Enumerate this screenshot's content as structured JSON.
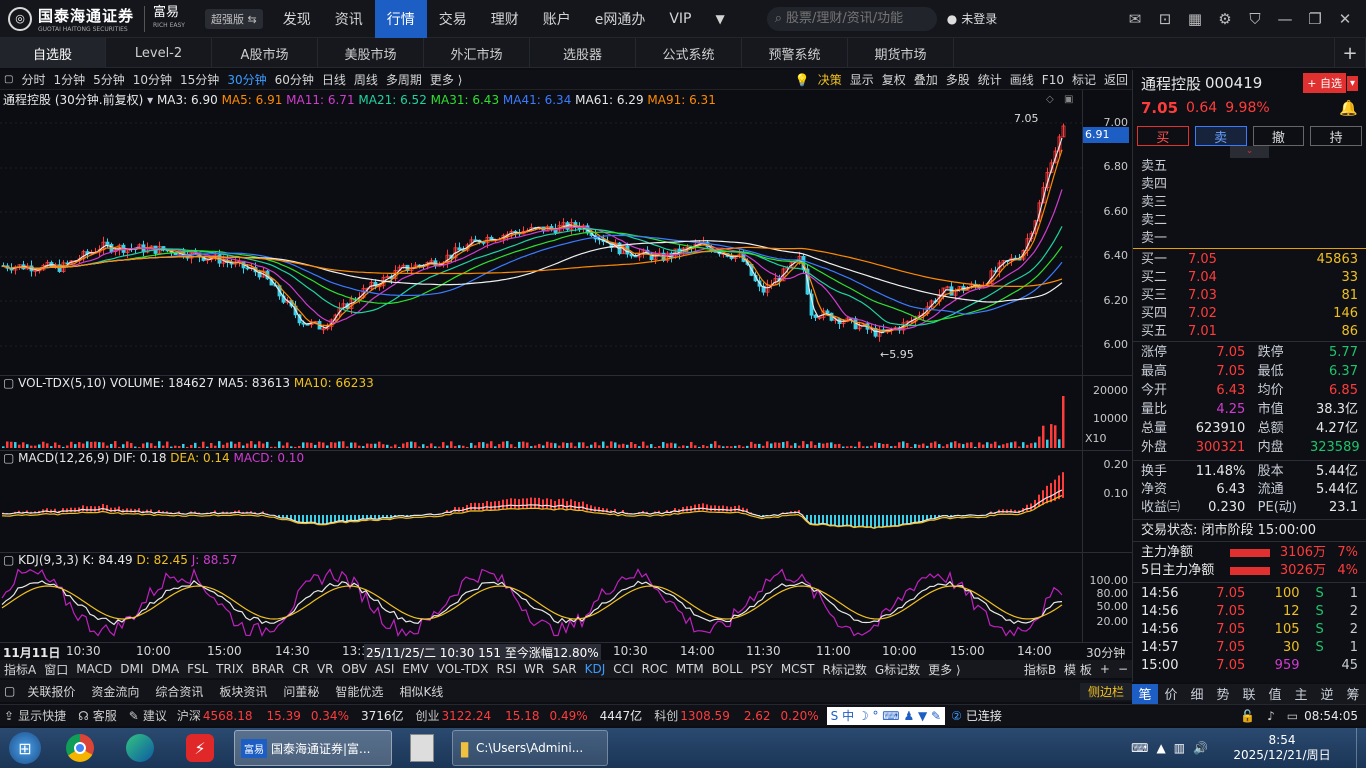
{
  "app": {
    "brand_cn": "国泰海通证券",
    "brand_en": "GUOTAI HAITONG SECURITIES",
    "rich": "富易",
    "rich_en": "RICH EASY",
    "edition": "超强版 ⇆"
  },
  "topnav": [
    "发现",
    "资讯",
    "行情",
    "交易",
    "理财",
    "账户",
    "e网通办",
    "VIP"
  ],
  "search_placeholder": "股票/理财/资讯/功能",
  "login": "未登录",
  "tabs2": [
    "自选股",
    "Level-2",
    "A股市场",
    "美股市场",
    "外汇市场",
    "选股器",
    "公式系统",
    "预警系统",
    "期货市场"
  ],
  "periods": [
    "分时",
    "1分钟",
    "5分钟",
    "10分钟",
    "15分钟",
    "30分钟",
    "60分钟",
    "日线",
    "周线",
    "多周期",
    "更多 ⟩"
  ],
  "tools": [
    "决策",
    "显示",
    "复权",
    "叠加",
    "多股",
    "统计",
    "画线",
    "F10",
    "标记",
    "返回"
  ],
  "ma_bar": {
    "name": "通程控股 (30分钟.前复权)",
    "ma3": "MA3: 6.90",
    "ma5": "MA5: 6.91",
    "ma11": "MA11: 6.71",
    "ma21": "MA21: 6.52",
    "ma31": "MA31: 6.43",
    "ma41": "MA41: 6.34",
    "ma61": "MA61: 6.29",
    "ma91": "MA91: 6.31"
  },
  "price_axis": [
    "7.00",
    "6.80",
    "6.60",
    "6.40",
    "6.20",
    "6.00"
  ],
  "price_high_label": "7.05",
  "price_low_label": "←5.95",
  "cur_price_tag": "6.91",
  "vol_bar": {
    "name": "VOL-TDX(5,10)",
    "vol": "VOLUME: 184627",
    "ma5": "MA5: 83613",
    "ma10": "MA10: 66233"
  },
  "vol_axis": [
    "20000",
    "10000"
  ],
  "vol_unit": "X10",
  "macd_bar": {
    "name": "MACD(12,26,9)",
    "dif": "DIF: 0.18",
    "dea": "DEA: 0.14",
    "macd": "MACD: 0.10"
  },
  "macd_axis": [
    "0.20",
    "0.10"
  ],
  "kdj_bar": {
    "name": "KDJ(9,3,3)",
    "k": "K: 84.49",
    "d": "D: 82.45",
    "j": "J: 88.57"
  },
  "kdj_axis": [
    "100.00",
    "80.00",
    "50.00",
    "20.00"
  ],
  "time_axis": {
    "first": "11月11日",
    "ticks": [
      "10:30",
      "10:00",
      "15:00",
      "14:30",
      "13:3",
      "11:30",
      "11:00",
      "10:00",
      "15:00",
      "14:00"
    ],
    "cursor": "25/11/25/二 10:30 151 至今涨幅12.80%",
    "period": "30分钟"
  },
  "indicators": [
    "指标A",
    "窗口",
    "MACD",
    "DMI",
    "DMA",
    "FSL",
    "TRIX",
    "BRAR",
    "CR",
    "VR",
    "OBV",
    "ASI",
    "EMV",
    "VOL-TDX",
    "RSI",
    "WR",
    "SAR",
    "KDJ",
    "CCI",
    "ROC",
    "MTM",
    "BOLL",
    "PSY",
    "MCST",
    "R标记数",
    "G标记数",
    "更多 ⟩"
  ],
  "ind_right": [
    "指标B",
    "模 板",
    "+",
    "−"
  ],
  "features": [
    "关联报价",
    "资金流向",
    "综合资讯",
    "板块资讯",
    "问董秘",
    "智能优选",
    "相似K线"
  ],
  "side_label": "侧边栏",
  "stock": {
    "name": "通程控股",
    "code": "000419",
    "price": "7.05",
    "change": "0.64",
    "pct": "9.98%",
    "add_btn": "+ 自选"
  },
  "trade_btns": [
    "买",
    "卖",
    "撤",
    "持"
  ],
  "sells": [
    "卖五",
    "卖四",
    "卖三",
    "卖二",
    "卖一"
  ],
  "buys": [
    {
      "l": "买一",
      "p": "7.05",
      "v": "45863"
    },
    {
      "l": "买二",
      "p": "7.04",
      "v": "33"
    },
    {
      "l": "买三",
      "p": "7.03",
      "v": "81"
    },
    {
      "l": "买四",
      "p": "7.02",
      "v": "146"
    },
    {
      "l": "买五",
      "p": "7.01",
      "v": "86"
    }
  ],
  "stats": [
    {
      "a": "涨停",
      "b": "7.05",
      "c": "跌停",
      "d": "5.77"
    },
    {
      "a": "最高",
      "b": "7.05",
      "c": "最低",
      "d": "6.37"
    },
    {
      "a": "今开",
      "b": "6.43",
      "c": "均价",
      "d": "6.85"
    },
    {
      "a": "量比",
      "b": "4.25",
      "c": "市值",
      "d": "38.3亿"
    },
    {
      "a": "总量",
      "b": "623910",
      "c": "总额",
      "d": "4.27亿"
    },
    {
      "a": "外盘",
      "b": "300321",
      "c": "内盘",
      "d": "323589"
    }
  ],
  "stats2": [
    {
      "a": "换手",
      "b": "11.48%",
      "c": "股本",
      "d": "5.44亿"
    },
    {
      "a": "净资",
      "b": "6.43",
      "c": "流通",
      "d": "5.44亿"
    },
    {
      "a": "收益㈢",
      "b": "0.230",
      "c": "PE(动)",
      "d": "23.1"
    }
  ],
  "trade_status": "交易状态: 闭市阶段 15:00:00",
  "flows": [
    {
      "l": "主力净额",
      "v": "3106万",
      "p": "7%"
    },
    {
      "l": "5日主力净额",
      "v": "3026万",
      "p": "4%"
    }
  ],
  "ticks": [
    {
      "t": "14:56",
      "p": "7.05",
      "v": "100",
      "s": "S",
      "n": "1"
    },
    {
      "t": "14:56",
      "p": "7.05",
      "v": "12",
      "s": "S",
      "n": "2"
    },
    {
      "t": "14:56",
      "p": "7.05",
      "v": "105",
      "s": "S",
      "n": "2"
    },
    {
      "t": "14:57",
      "p": "7.05",
      "v": "30",
      "s": "S",
      "n": "1"
    },
    {
      "t": "15:00",
      "p": "7.05",
      "v": "959",
      "s": "",
      "n": "45"
    }
  ],
  "rtabs": [
    "笔",
    "价",
    "细",
    "势",
    "联",
    "值",
    "主",
    "逆",
    "筹"
  ],
  "status": {
    "quick": "显示快捷",
    "service": "客服",
    "suggest": "建议",
    "idx": [
      {
        "n": "沪深",
        "v": "4568.18",
        "c": "15.39",
        "p": "0.34%",
        "a": "3716亿"
      },
      {
        "n": "创业",
        "v": "3122.24",
        "c": "15.18",
        "p": "0.49%",
        "a": "4447亿"
      },
      {
        "n": "科创",
        "v": "1308.59",
        "c": "2.62",
        "p": "0.20%",
        "a": ""
      }
    ],
    "conn": "已连接",
    "time": "08:54:05"
  },
  "taskbar": {
    "app1": "国泰海通证券|富...",
    "app2": "C:\\Users\\Admini...",
    "clock": "8:54",
    "date": "2025/12/21/周日"
  }
}
